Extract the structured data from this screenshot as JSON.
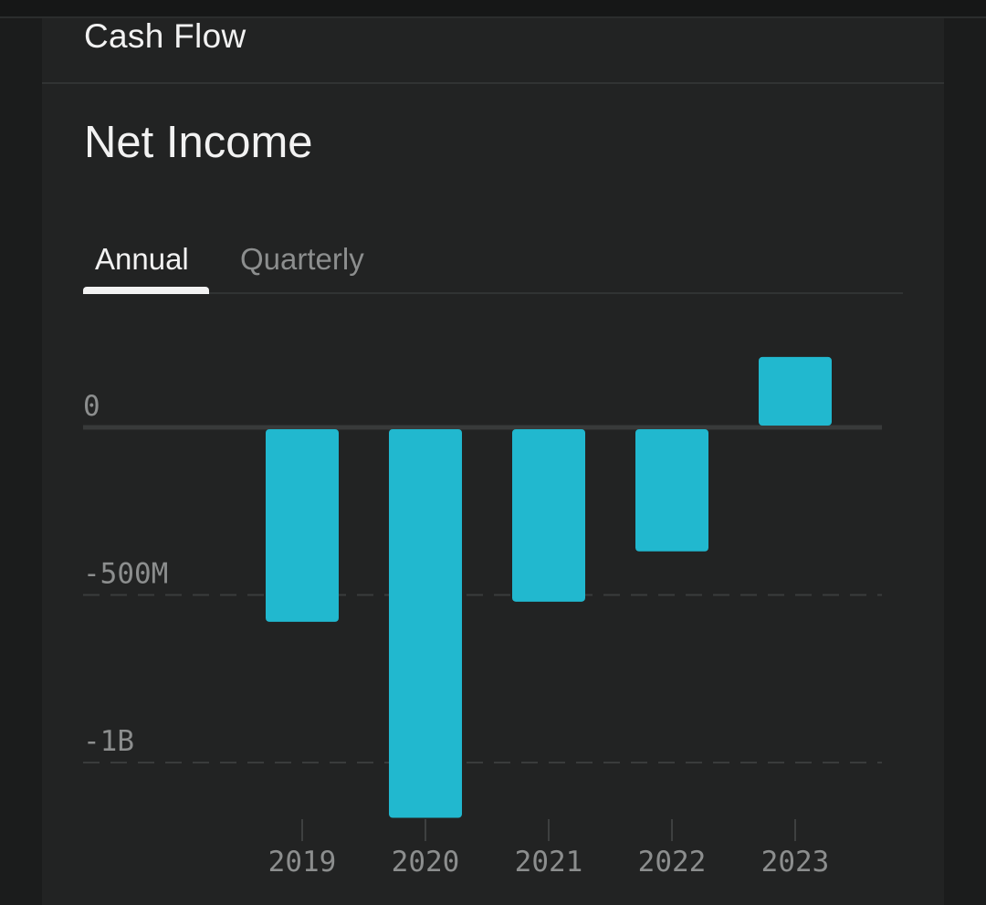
{
  "section": {
    "title": "Cash Flow"
  },
  "chart_header": {
    "title": "Net Income"
  },
  "tabs": [
    {
      "label": "Annual",
      "active": true
    },
    {
      "label": "Quarterly",
      "active": false
    }
  ],
  "colors": {
    "bar": "#21b8cf",
    "background": "#222323",
    "text_primary": "#f2f2f2",
    "text_muted": "#8c8e8e"
  },
  "chart_data": {
    "type": "bar",
    "title": "Net Income",
    "xlabel": "",
    "ylabel": "",
    "categories": [
      "2019",
      "2020",
      "2021",
      "2022",
      "2023"
    ],
    "values": [
      -580000000,
      -1165000000,
      -520000000,
      -370000000,
      210000000
    ],
    "ylim": [
      -1165000000,
      210000000
    ],
    "y_ticks": [
      {
        "value": 0,
        "label": "0"
      },
      {
        "value": -500000000,
        "label": "-500M"
      },
      {
        "value": -1000000000,
        "label": "-1B"
      }
    ],
    "grid": true,
    "legend": "none"
  }
}
